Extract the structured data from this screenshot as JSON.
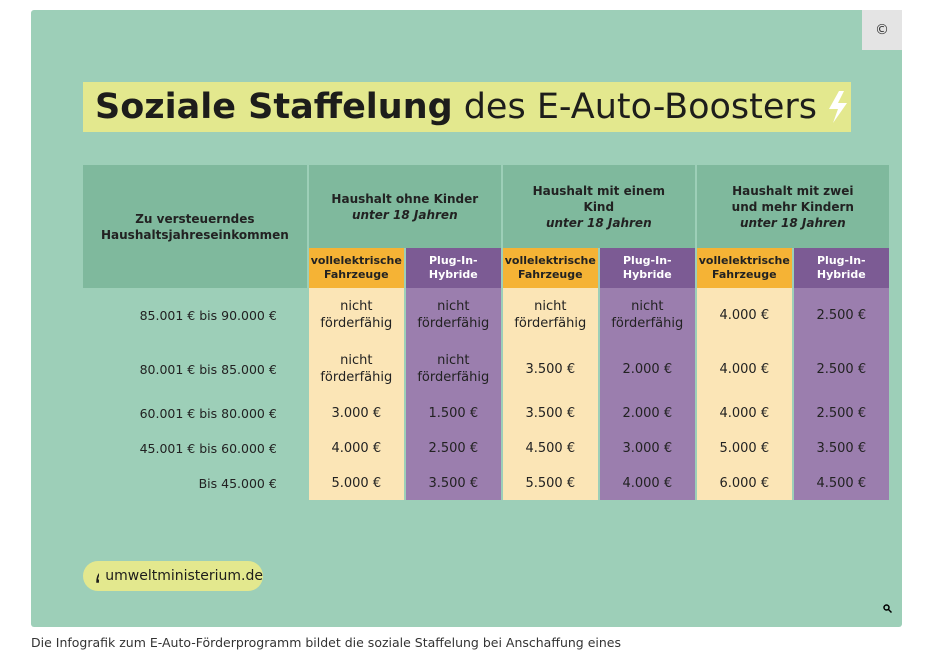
{
  "copyright": "©",
  "title": {
    "bold": "Soziale Staffelung",
    "rest": "des E-Auto-Boosters"
  },
  "table": {
    "row_header": "Zu versteuerndes Haushaltsjahreseinkommen",
    "groups": [
      {
        "title": "Haushalt ohne Kinder",
        "note": "unter 18 Jahren"
      },
      {
        "title": "Haushalt mit einem Kind",
        "note": "unter 18 Jahren"
      },
      {
        "title": "Haushalt mit zwei und mehr Kindern",
        "note": "unter 18 Jahren"
      }
    ],
    "subheaders": [
      "vollelektrische Fahrzeuge",
      "Plug-In-Hybride",
      "vollelektrische Fahrzeuge",
      "Plug-In-Hybride",
      "vollelektrische Fahrzeuge",
      "Plug-In-Hybride"
    ],
    "rows": [
      [
        "85.001 € bis 90.000 €",
        "nicht förderfähig",
        "nicht förderfähig",
        "nicht förderfähig",
        "nicht förderfähig",
        "4.000 €",
        "2.500 €"
      ],
      [
        "80.001 € bis 85.000 €",
        "nicht förderfähig",
        "nicht förderfähig",
        "3.500 €",
        "2.000 €",
        "4.000 €",
        "2.500 €"
      ],
      [
        "60.001 € bis 80.000 €",
        "3.000 €",
        "1.500 €",
        "3.500 €",
        "2.000 €",
        "4.000 €",
        "2.500 €"
      ],
      [
        "45.001 € bis 60.000 €",
        "4.000 €",
        "2.500 €",
        "4.500 €",
        "3.000 €",
        "5.000 €",
        "3.500 €"
      ],
      [
        "Bis 45.000 €",
        "5.000 €",
        "3.500 €",
        "5.500 €",
        "4.000 €",
        "6.000 €",
        "4.500 €"
      ]
    ]
  },
  "badge": "umweltministerium.de",
  "caption": "Die Infografik zum E-Auto-Förderprogramm bildet die soziale Staffelung bei Anschaffung eines"
}
